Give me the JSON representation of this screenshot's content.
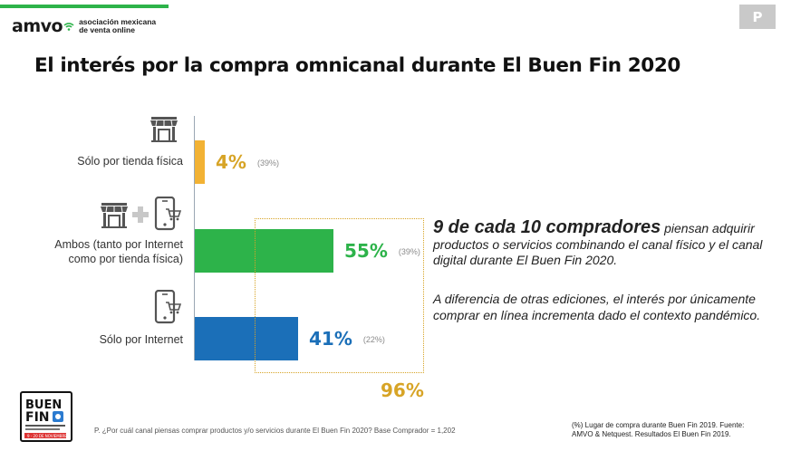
{
  "header": {
    "logo_word": "amvo",
    "logo_sub_line1": "asociación mexicana",
    "logo_sub_line2": "de venta online",
    "badge": "P"
  },
  "title": "El interés por la compra omnicanal durante El Buen Fin 2020",
  "chart_data": {
    "type": "bar",
    "orientation": "horizontal",
    "categories": [
      "Sólo por tienda física",
      "Ambos (tanto por Internet como por tienda física)",
      "Sólo por Internet"
    ],
    "values": [
      4,
      55,
      41
    ],
    "value_labels": [
      "4%",
      "55%",
      "41%"
    ],
    "previous_year_labels": [
      "(39%)",
      "(39%)",
      "(22%)"
    ],
    "colors": [
      "#f2b234",
      "#2db34a",
      "#1b6fb8"
    ],
    "value_label_colors": [
      "#d7a426",
      "#2db34a",
      "#1b6fb8"
    ],
    "xlim": [
      0,
      100
    ],
    "total_label": "96%",
    "total_color": "#d7a426"
  },
  "labels": {
    "cat1": "Sólo por tienda física",
    "cat2_line1": "Ambos (tanto por Internet",
    "cat2_line2": "como por tienda física)",
    "cat3": "Sólo por Internet"
  },
  "text": {
    "headline_strong": "9 de cada 10 compradores",
    "headline_rest": " piensan adquirir productos o servicios combinando el canal físico y el canal digital durante El Buen Fin 2020.",
    "para2": "A diferencia de otras ediciones, el interés por únicamente comprar en línea incrementa dado el contexto pandémico."
  },
  "footer": {
    "question": "P. ¿Por cuál canal piensas comprar productos y/o servicios durante El Buen Fin 2020?  Base Comprador = 1,202",
    "source_line1": "(%) Lugar de compra durante Buen Fin 2019. Fuente:",
    "source_line2": "AMVO & Netquest. Resultados El Buen Fin 2019.",
    "buenfin_line1": "BUEN",
    "buenfin_line2": "FIN",
    "buenfin_date": "9 - 20 DE NOVIEMBRE"
  },
  "icons": [
    "store-icon",
    "plus-icon",
    "phone-cart-icon"
  ]
}
